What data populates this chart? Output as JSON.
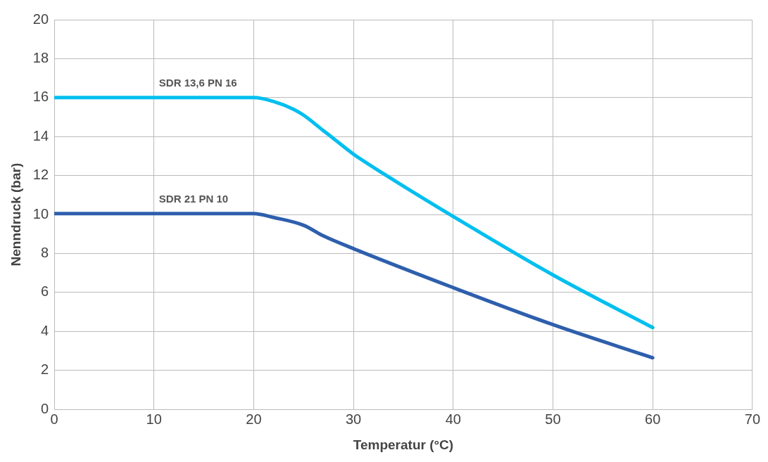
{
  "chart_data": {
    "type": "line",
    "xlabel": "Temperatur (°C)",
    "ylabel": "Nenndruck (bar)",
    "xlim": [
      0,
      70
    ],
    "xticks": [
      0,
      10,
      20,
      30,
      40,
      50,
      60,
      70
    ],
    "ylim": [
      0,
      20
    ],
    "yticks": [
      0,
      2,
      4,
      6,
      8,
      10,
      12,
      14,
      16,
      18,
      20
    ],
    "grid": true,
    "legend": false,
    "marker": "none",
    "line_style": "solid",
    "series": [
      {
        "name": "SDR 13,6 PN 16",
        "color": "#00bfef",
        "x": [
          0,
          20,
          22,
          24,
          25,
          27,
          28,
          30,
          33,
          40,
          50,
          60
        ],
        "values": [
          16,
          16,
          15.8,
          15.4,
          15.1,
          14.3,
          13.9,
          13.1,
          12.1,
          9.9,
          6.9,
          4.2
        ]
      },
      {
        "name": "SDR 21 PN 10",
        "color": "#2e5fad",
        "x": [
          0,
          20,
          22,
          25,
          27,
          30,
          40,
          50,
          60
        ],
        "values": [
          10.05,
          10.05,
          9.85,
          9.45,
          8.9,
          8.25,
          6.25,
          4.35,
          2.65
        ]
      }
    ]
  }
}
